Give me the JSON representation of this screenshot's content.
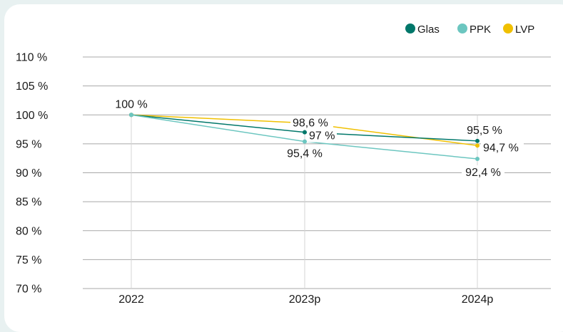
{
  "chart_data": {
    "type": "line",
    "categories": [
      "2022",
      "2023p",
      "2024p"
    ],
    "ylim": [
      70,
      110
    ],
    "yticks": [
      70,
      75,
      80,
      85,
      90,
      95,
      100,
      105,
      110
    ],
    "ytick_labels": [
      "70 %",
      "75 %",
      "80 %",
      "85 %",
      "90 %",
      "95 %",
      "100 %",
      "105 %",
      "110 %"
    ],
    "grid": true,
    "legend_position": "top-right",
    "series": [
      {
        "name": "Glas",
        "color": "#00776a",
        "values": [
          100,
          97,
          95.5
        ],
        "labels": [
          "100 %",
          "97 %",
          "95,5 %"
        ]
      },
      {
        "name": "PPK",
        "color": "#6cc6c0",
        "values": [
          100,
          95.4,
          92.4
        ],
        "labels": [
          "",
          "95,4 %",
          "92,4 %"
        ]
      },
      {
        "name": "LVP",
        "color": "#f0c000",
        "values": [
          100,
          98.6,
          94.7
        ],
        "labels": [
          "",
          "98,6 %",
          "94,7 %"
        ]
      }
    ]
  }
}
